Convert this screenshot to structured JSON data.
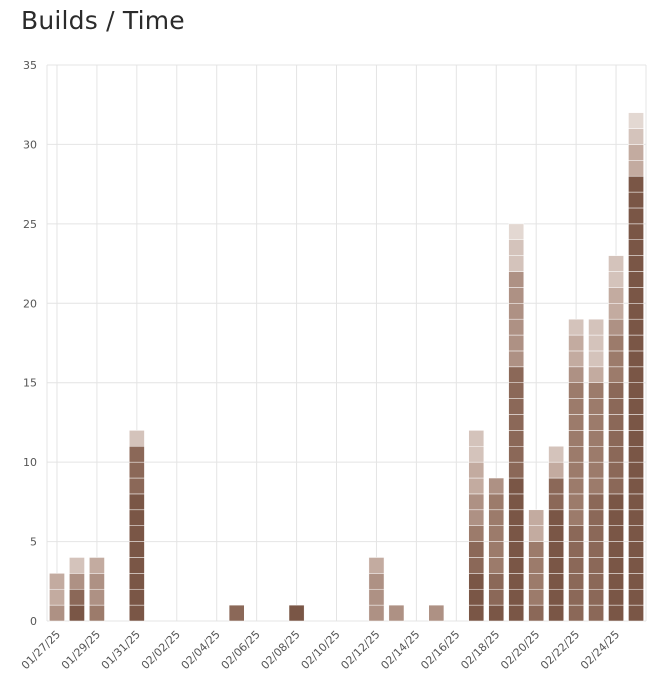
{
  "header": {
    "title": "Builds / Time"
  },
  "colors": {
    "series": [
      "#7a5646",
      "#8b6858",
      "#9c7b6b",
      "#ae9184",
      "#c3aba0",
      "#d4c3bb",
      "#e3d8d2"
    ],
    "grid": "#e4e4e4",
    "segment_separator": "#ffffff"
  },
  "chart_data": {
    "type": "bar",
    "stacked": true,
    "title": "Builds / Time",
    "xlabel": "",
    "ylabel": "",
    "ylim": [
      0,
      35
    ],
    "yticks": [
      0,
      5,
      10,
      15,
      20,
      25,
      30,
      35
    ],
    "grid": true,
    "legend": "none",
    "categories": [
      "01/27/25",
      "01/28/25",
      "01/29/25",
      "01/30/25",
      "01/31/25",
      "02/01/25",
      "02/02/25",
      "02/03/25",
      "02/04/25",
      "02/05/25",
      "02/06/25",
      "02/07/25",
      "02/08/25",
      "02/09/25",
      "02/10/25",
      "02/11/25",
      "02/12/25",
      "02/13/25",
      "02/14/25",
      "02/15/25",
      "02/16/25",
      "02/17/25",
      "02/18/25",
      "02/19/25",
      "02/20/25",
      "02/21/25",
      "02/22/25",
      "02/23/25",
      "02/24/25",
      "02/25/25"
    ],
    "tick_labels": [
      "01/27/25",
      "01/29/25",
      "01/31/25",
      "02/02/25",
      "02/04/25",
      "02/06/25",
      "02/08/25",
      "02/10/25",
      "02/12/25",
      "02/14/25",
      "02/16/25",
      "02/18/25",
      "02/20/25",
      "02/22/25",
      "02/24/25"
    ],
    "series": [
      {
        "values": [
          0,
          1,
          0,
          0,
          8,
          0,
          0,
          0,
          0,
          0,
          0,
          0,
          1,
          0,
          0,
          0,
          0,
          0,
          0,
          0,
          0,
          3,
          1,
          9,
          0,
          7,
          0,
          0,
          8,
          28
        ]
      },
      {
        "values": [
          0,
          1,
          0,
          0,
          3,
          0,
          0,
          0,
          0,
          1,
          0,
          0,
          0,
          0,
          0,
          0,
          0,
          0,
          0,
          0,
          0,
          2,
          2,
          7,
          1,
          2,
          6,
          8,
          7,
          0
        ]
      },
      {
        "values": [
          0,
          0,
          1,
          0,
          0,
          0,
          0,
          0,
          0,
          0,
          0,
          0,
          0,
          0,
          0,
          0,
          0,
          0,
          0,
          0,
          0,
          1,
          5,
          0,
          4,
          0,
          9,
          7,
          3,
          0
        ]
      },
      {
        "values": [
          1,
          1,
          2,
          0,
          0,
          0,
          0,
          0,
          0,
          0,
          0,
          0,
          0,
          0,
          0,
          0,
          3,
          1,
          0,
          1,
          0,
          2,
          1,
          6,
          0,
          0,
          1,
          0,
          1,
          0
        ]
      },
      {
        "values": [
          2,
          0,
          1,
          0,
          0,
          0,
          0,
          0,
          0,
          0,
          0,
          0,
          0,
          0,
          0,
          0,
          1,
          0,
          0,
          0,
          0,
          2,
          0,
          0,
          2,
          1,
          2,
          1,
          2,
          2
        ]
      },
      {
        "values": [
          0,
          1,
          0,
          0,
          1,
          0,
          0,
          0,
          0,
          0,
          0,
          0,
          0,
          0,
          0,
          0,
          0,
          0,
          0,
          0,
          0,
          2,
          0,
          2,
          0,
          1,
          1,
          3,
          2,
          1
        ]
      },
      {
        "values": [
          0,
          0,
          0,
          0,
          0,
          0,
          0,
          0,
          0,
          0,
          0,
          0,
          0,
          0,
          0,
          0,
          0,
          0,
          0,
          0,
          0,
          0,
          0,
          1,
          0,
          0,
          0,
          0,
          0,
          1
        ]
      }
    ]
  }
}
